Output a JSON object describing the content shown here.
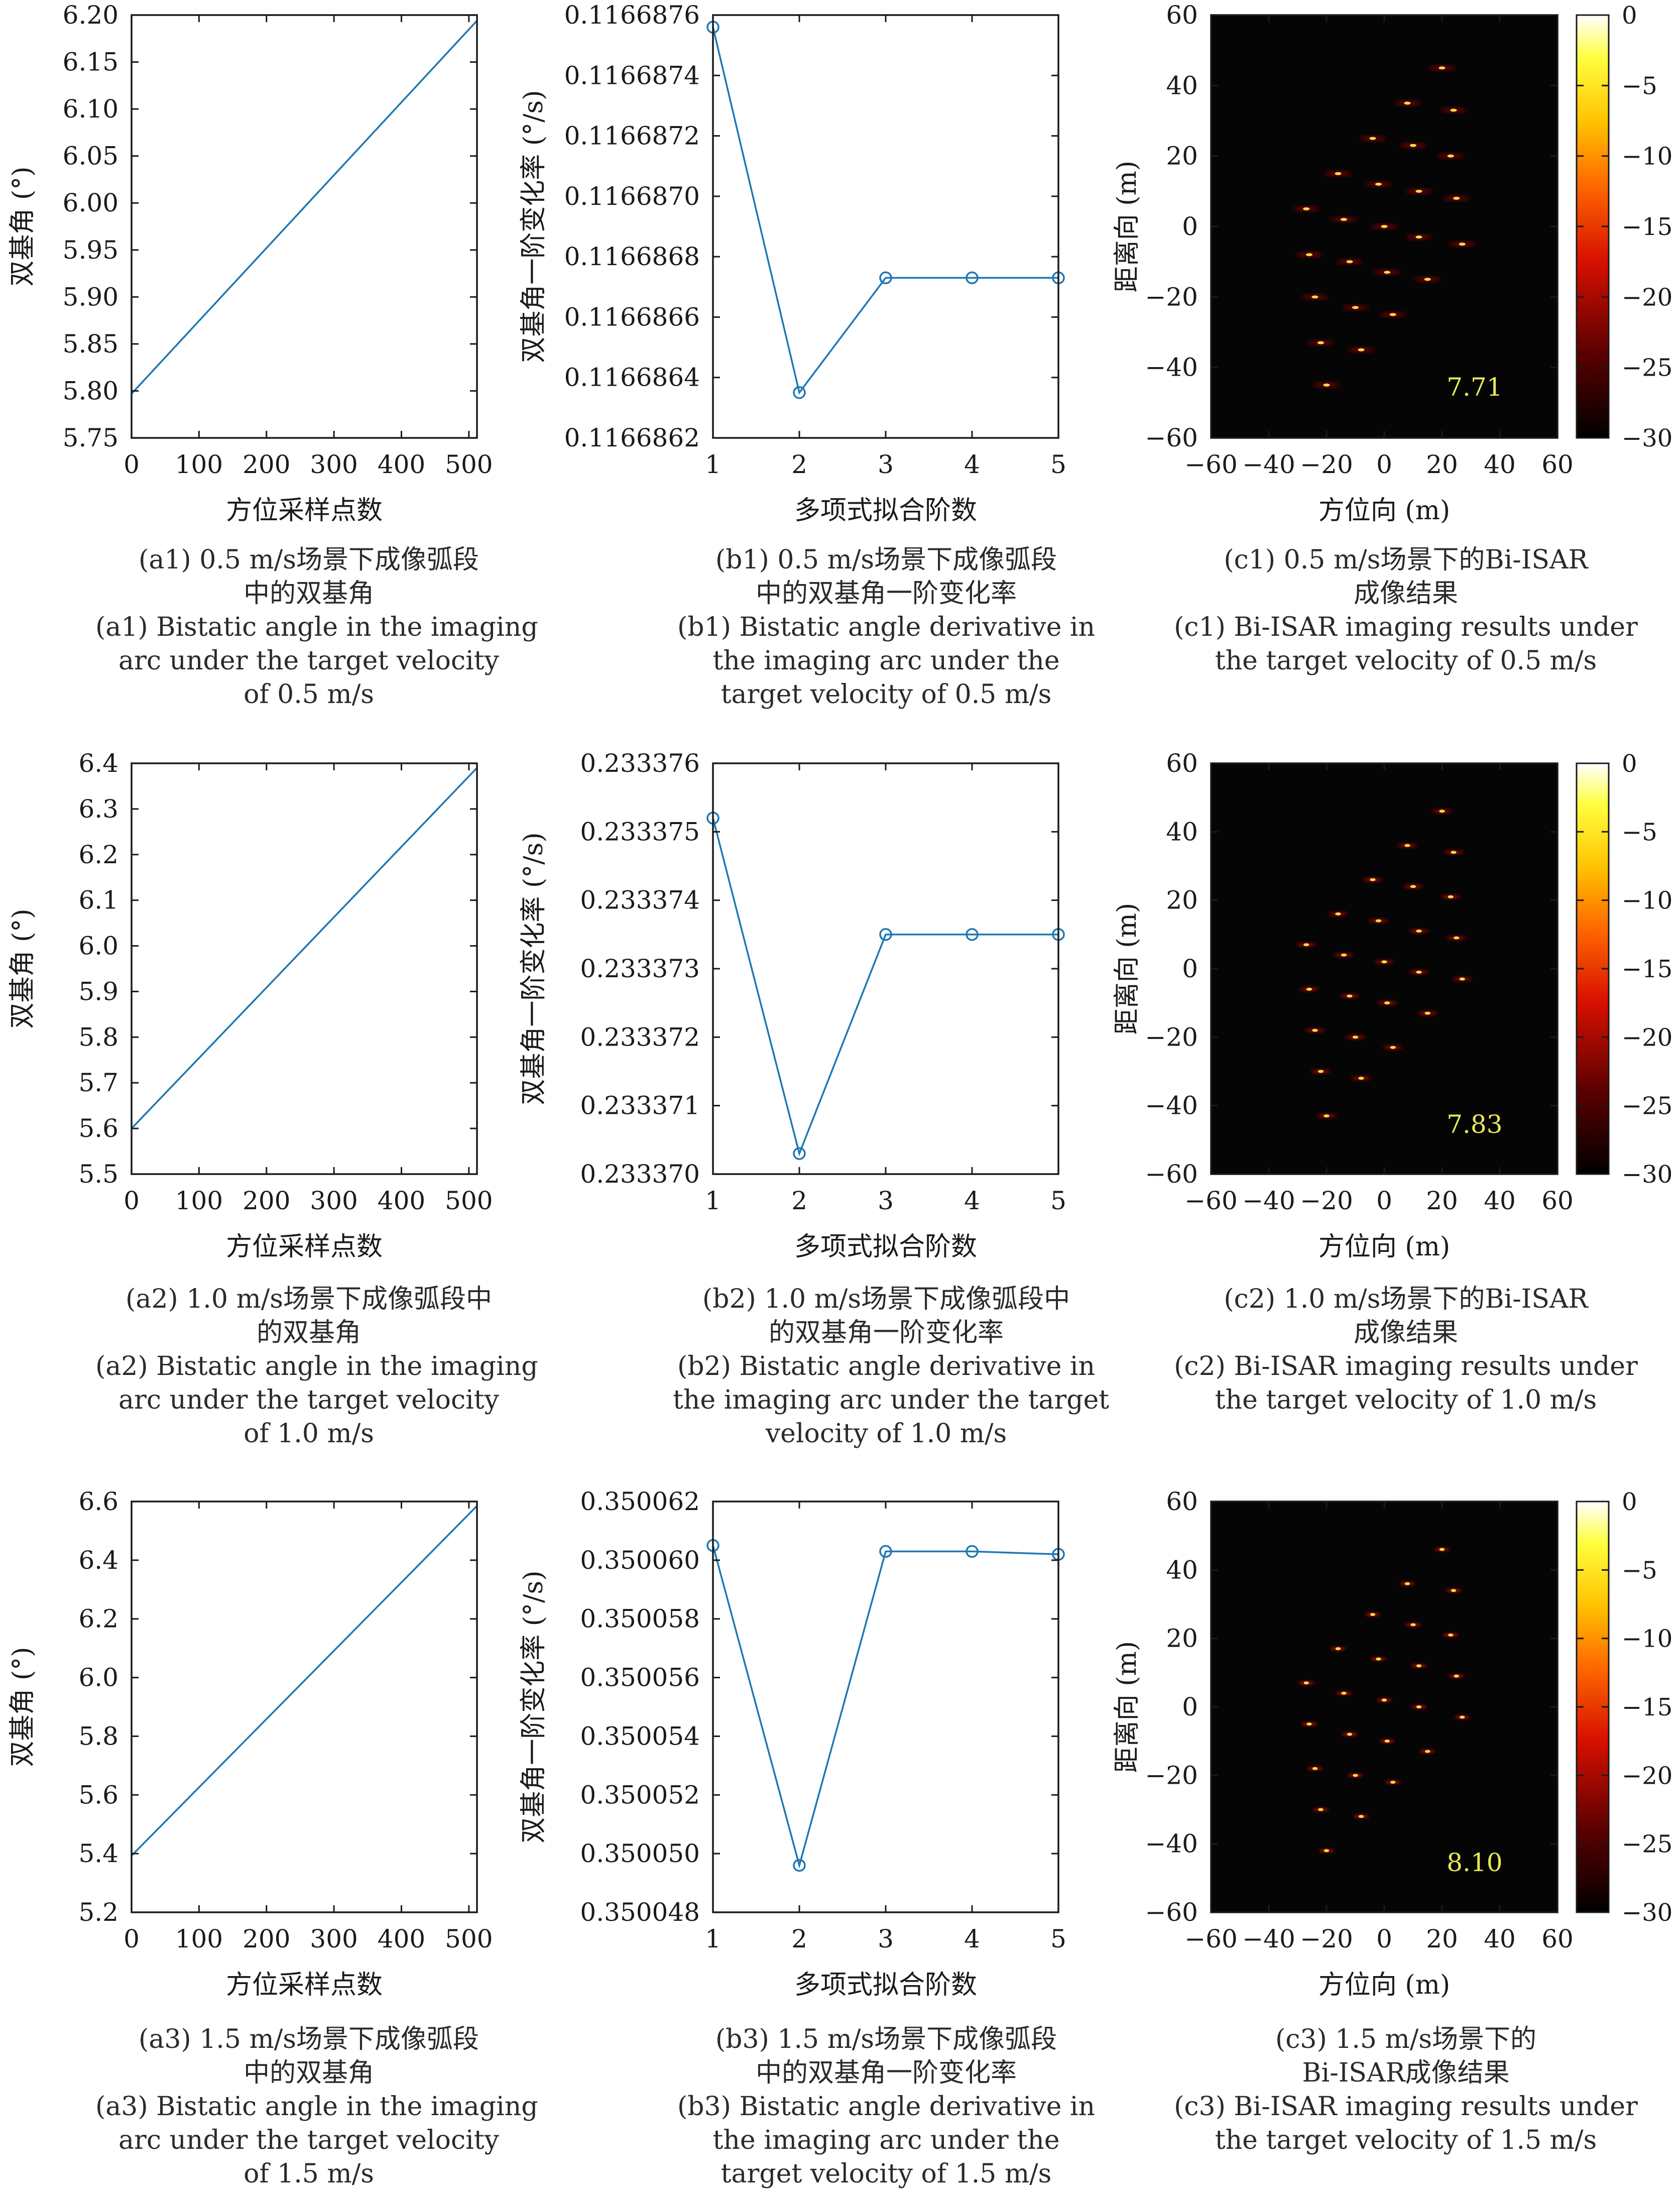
{
  "figure": {
    "rows": [
      {
        "a": {
          "caption_cn": [
            "(a1) 0.5 m/s场景下成像弧段",
            "中的双基角"
          ],
          "caption_en": [
            "(a1) Bistatic angle in the imaging",
            "arc under the target velocity",
            "of 0.5 m/s"
          ]
        },
        "b": {
          "caption_cn": [
            "(b1) 0.5 m/s场景下成像弧段",
            "中的双基角一阶变化率"
          ],
          "caption_en": [
            "(b1) Bistatic angle derivative in",
            "the imaging arc under the",
            "target velocity of 0.5 m/s"
          ]
        },
        "c": {
          "caption_cn": [
            "(c1) 0.5 m/s场景下的Bi-ISAR",
            "成像结果"
          ],
          "caption_en": [
            "(c1) Bi-ISAR imaging results under",
            "the target velocity of 0.5 m/s"
          ]
        }
      },
      {
        "a": {
          "caption_cn": [
            "(a2) 1.0 m/s场景下成像弧段中",
            "的双基角"
          ],
          "caption_en": [
            "(a2) Bistatic angle in the imaging",
            "arc under the target velocity",
            "of 1.0 m/s"
          ]
        },
        "b": {
          "caption_cn": [
            "(b2) 1.0 m/s场景下成像弧段中",
            "的双基角一阶变化率"
          ],
          "caption_en": [
            "(b2) Bistatic angle derivative in",
            "the imaging arc under the target",
            "velocity of 1.0 m/s"
          ]
        },
        "c": {
          "caption_cn": [
            "(c2) 1.0 m/s场景下的Bi-ISAR",
            "成像结果"
          ],
          "caption_en": [
            "(c2) Bi-ISAR imaging results under",
            "the target velocity of 1.0 m/s"
          ]
        }
      },
      {
        "a": {
          "caption_cn": [
            "(a3) 1.5 m/s场景下成像弧段",
            "中的双基角"
          ],
          "caption_en": [
            "(a3) Bistatic angle in the  imaging",
            "arc under the target velocity",
            "of 1.5 m/s"
          ]
        },
        "b": {
          "caption_cn": [
            "(b3) 1.5 m/s场景下成像弧段",
            "中的双基角一阶变化率"
          ],
          "caption_en": [
            "(b3) Bistatic angle derivative in",
            "the imaging arc under the",
            "target velocity of 1.5 m/s"
          ]
        },
        "c": {
          "caption_cn": [
            "(c3) 1.5 m/s场景下的",
            "Bi-ISAR成像结果"
          ],
          "caption_en": [
            "(c3) Bi-ISAR imaging results under",
            "the target velocity of 1.5 m/s"
          ]
        }
      }
    ]
  },
  "colors": {
    "line": "#1f77b4",
    "axis": "#1a1a1a",
    "image_bg": "#050505",
    "annotation": "#e8e85a"
  },
  "chart_data": [
    {
      "id": "a1",
      "type": "line",
      "xlabel": "方位采样点数",
      "ylabel": "双基角 (°)",
      "xlim": [
        0,
        512
      ],
      "ylim": [
        5.75,
        6.2
      ],
      "xticks": [
        "0",
        "100",
        "200",
        "300",
        "400",
        "500"
      ],
      "yticks": [
        "5.75",
        "5.80",
        "5.85",
        "5.90",
        "5.95",
        "6.00",
        "6.05",
        "6.10",
        "6.15",
        "6.20"
      ],
      "series": [
        {
          "x": [
            0,
            512
          ],
          "y": [
            5.797,
            6.194
          ]
        }
      ]
    },
    {
      "id": "b1",
      "type": "line",
      "xlabel": "多项式拟合阶数",
      "ylabel": "双基角一阶变化率 (°/s)",
      "xlim": [
        1,
        5
      ],
      "ylim": [
        0.1166862,
        0.1166876
      ],
      "xticks": [
        "1",
        "2",
        "3",
        "4",
        "5"
      ],
      "yticks": [
        "0.1166862",
        "0.1166864",
        "0.1166866",
        "0.1166868",
        "0.1166870",
        "0.1166872",
        "0.1166874",
        "0.1166876"
      ],
      "series": [
        {
          "x": [
            1,
            2,
            3,
            4,
            5
          ],
          "y": [
            0.11668756,
            0.11668635,
            0.11668673,
            0.11668673,
            0.11668673
          ]
        }
      ]
    },
    {
      "id": "c1",
      "type": "heatmap",
      "xlabel": "方位向 (m)",
      "ylabel": "距离向 (m)",
      "xlim": [
        -60,
        60
      ],
      "ylim": [
        -60,
        60
      ],
      "xticks": [
        "−60",
        "−40",
        "−20",
        "0",
        "20",
        "40",
        "60"
      ],
      "yticks": [
        "−60",
        "−40",
        "−20",
        "0",
        "20",
        "40",
        "60"
      ],
      "colorbar": {
        "min": -30,
        "max": 0,
        "ticks": [
          "0",
          "−5",
          "−10",
          "−15",
          "−20",
          "−25",
          "−30"
        ]
      },
      "annotation": "7.71",
      "points": [
        [
          20,
          45
        ],
        [
          8,
          35
        ],
        [
          24,
          33
        ],
        [
          -4,
          25
        ],
        [
          10,
          23
        ],
        [
          23,
          20
        ],
        [
          -16,
          15
        ],
        [
          -2,
          12
        ],
        [
          12,
          10
        ],
        [
          25,
          8
        ],
        [
          -27,
          5
        ],
        [
          -14,
          2
        ],
        [
          0,
          0
        ],
        [
          12,
          -3
        ],
        [
          27,
          -5
        ],
        [
          -26,
          -8
        ],
        [
          -12,
          -10
        ],
        [
          1,
          -13
        ],
        [
          15,
          -15
        ],
        [
          -24,
          -20
        ],
        [
          -10,
          -23
        ],
        [
          3,
          -25
        ],
        [
          -22,
          -33
        ],
        [
          -8,
          -35
        ],
        [
          -20,
          -45
        ]
      ],
      "blur": 1.0
    },
    {
      "id": "a2",
      "type": "line",
      "xlabel": "方位采样点数",
      "ylabel": "双基角 (°)",
      "xlim": [
        0,
        512
      ],
      "ylim": [
        5.5,
        6.4
      ],
      "xticks": [
        "0",
        "100",
        "200",
        "300",
        "400",
        "500"
      ],
      "yticks": [
        "5.5",
        "5.6",
        "5.7",
        "5.8",
        "5.9",
        "6.0",
        "6.1",
        "6.2",
        "6.3",
        "6.4"
      ],
      "series": [
        {
          "x": [
            0,
            512
          ],
          "y": [
            5.6,
            6.39
          ]
        }
      ]
    },
    {
      "id": "b2",
      "type": "line",
      "xlabel": "多项式拟合阶数",
      "ylabel": "双基角一阶变化率 (°/s)",
      "xlim": [
        1,
        5
      ],
      "ylim": [
        0.23337,
        0.233376
      ],
      "xticks": [
        "1",
        "2",
        "3",
        "4",
        "5"
      ],
      "yticks": [
        "0.233370",
        "0.233371",
        "0.233372",
        "0.233373",
        "0.233374",
        "0.233375",
        "0.233376"
      ],
      "series": [
        {
          "x": [
            1,
            2,
            3,
            4,
            5
          ],
          "y": [
            0.2333752,
            0.2333703,
            0.2333735,
            0.2333735,
            0.2333735
          ]
        }
      ]
    },
    {
      "id": "c2",
      "type": "heatmap",
      "xlabel": "方位向 (m)",
      "ylabel": "距离向 (m)",
      "xlim": [
        -60,
        60
      ],
      "ylim": [
        -60,
        60
      ],
      "xticks": [
        "−60",
        "−40",
        "−20",
        "0",
        "20",
        "40",
        "60"
      ],
      "yticks": [
        "−60",
        "−40",
        "−20",
        "0",
        "20",
        "40",
        "60"
      ],
      "colorbar": {
        "min": -30,
        "max": 0,
        "ticks": [
          "0",
          "−5",
          "−10",
          "−15",
          "−20",
          "−25",
          "−30"
        ]
      },
      "annotation": "7.83",
      "points": [
        [
          20,
          46
        ],
        [
          8,
          36
        ],
        [
          24,
          34
        ],
        [
          -4,
          26
        ],
        [
          10,
          24
        ],
        [
          23,
          21
        ],
        [
          -16,
          16
        ],
        [
          -2,
          14
        ],
        [
          12,
          11
        ],
        [
          25,
          9
        ],
        [
          -27,
          7
        ],
        [
          -14,
          4
        ],
        [
          0,
          2
        ],
        [
          12,
          -1
        ],
        [
          27,
          -3
        ],
        [
          -26,
          -6
        ],
        [
          -12,
          -8
        ],
        [
          1,
          -10
        ],
        [
          15,
          -13
        ],
        [
          -24,
          -18
        ],
        [
          -10,
          -20
        ],
        [
          3,
          -23
        ],
        [
          -22,
          -30
        ],
        [
          -8,
          -32
        ],
        [
          -20,
          -43
        ]
      ],
      "blur": 0.6
    },
    {
      "id": "a3",
      "type": "line",
      "xlabel": "方位采样点数",
      "ylabel": "双基角 (°)",
      "xlim": [
        0,
        512
      ],
      "ylim": [
        5.2,
        6.6
      ],
      "xticks": [
        "0",
        "100",
        "200",
        "300",
        "400",
        "500"
      ],
      "yticks": [
        "5.2",
        "5.4",
        "5.6",
        "5.8",
        "6.0",
        "6.2",
        "6.4",
        "6.6"
      ],
      "series": [
        {
          "x": [
            0,
            512
          ],
          "y": [
            5.393,
            6.585
          ]
        }
      ]
    },
    {
      "id": "b3",
      "type": "line",
      "xlabel": "多项式拟合阶数",
      "ylabel": "双基角一阶变化率 (°/s)",
      "xlim": [
        1,
        5
      ],
      "ylim": [
        0.350048,
        0.350062
      ],
      "xticks": [
        "1",
        "2",
        "3",
        "4",
        "5"
      ],
      "yticks": [
        "0.350048",
        "0.350050",
        "0.350052",
        "0.350054",
        "0.350056",
        "0.350058",
        "0.350060",
        "0.350062"
      ],
      "series": [
        {
          "x": [
            1,
            2,
            3,
            4,
            5
          ],
          "y": [
            0.3500605,
            0.3500496,
            0.3500603,
            0.3500603,
            0.3500602
          ]
        }
      ]
    },
    {
      "id": "c3",
      "type": "heatmap",
      "xlabel": "方位向 (m)",
      "ylabel": "距离向 (m)",
      "xlim": [
        -60,
        60
      ],
      "ylim": [
        -60,
        60
      ],
      "xticks": [
        "−60",
        "−40",
        "−20",
        "0",
        "20",
        "40",
        "60"
      ],
      "yticks": [
        "−60",
        "−40",
        "−20",
        "0",
        "20",
        "40",
        "60"
      ],
      "colorbar": {
        "min": -30,
        "max": 0,
        "ticks": [
          "0",
          "−5",
          "−10",
          "−15",
          "−20",
          "−25",
          "−30"
        ]
      },
      "annotation": "8.10",
      "points": [
        [
          20,
          46
        ],
        [
          8,
          36
        ],
        [
          24,
          34
        ],
        [
          -4,
          27
        ],
        [
          10,
          24
        ],
        [
          23,
          21
        ],
        [
          -16,
          17
        ],
        [
          -2,
          14
        ],
        [
          12,
          12
        ],
        [
          25,
          9
        ],
        [
          -27,
          7
        ],
        [
          -14,
          4
        ],
        [
          0,
          2
        ],
        [
          12,
          0
        ],
        [
          27,
          -3
        ],
        [
          -26,
          -5
        ],
        [
          -12,
          -8
        ],
        [
          1,
          -10
        ],
        [
          15,
          -13
        ],
        [
          -24,
          -18
        ],
        [
          -10,
          -20
        ],
        [
          3,
          -22
        ],
        [
          -22,
          -30
        ],
        [
          -8,
          -32
        ],
        [
          -20,
          -42
        ]
      ],
      "blur": 0.35
    }
  ]
}
